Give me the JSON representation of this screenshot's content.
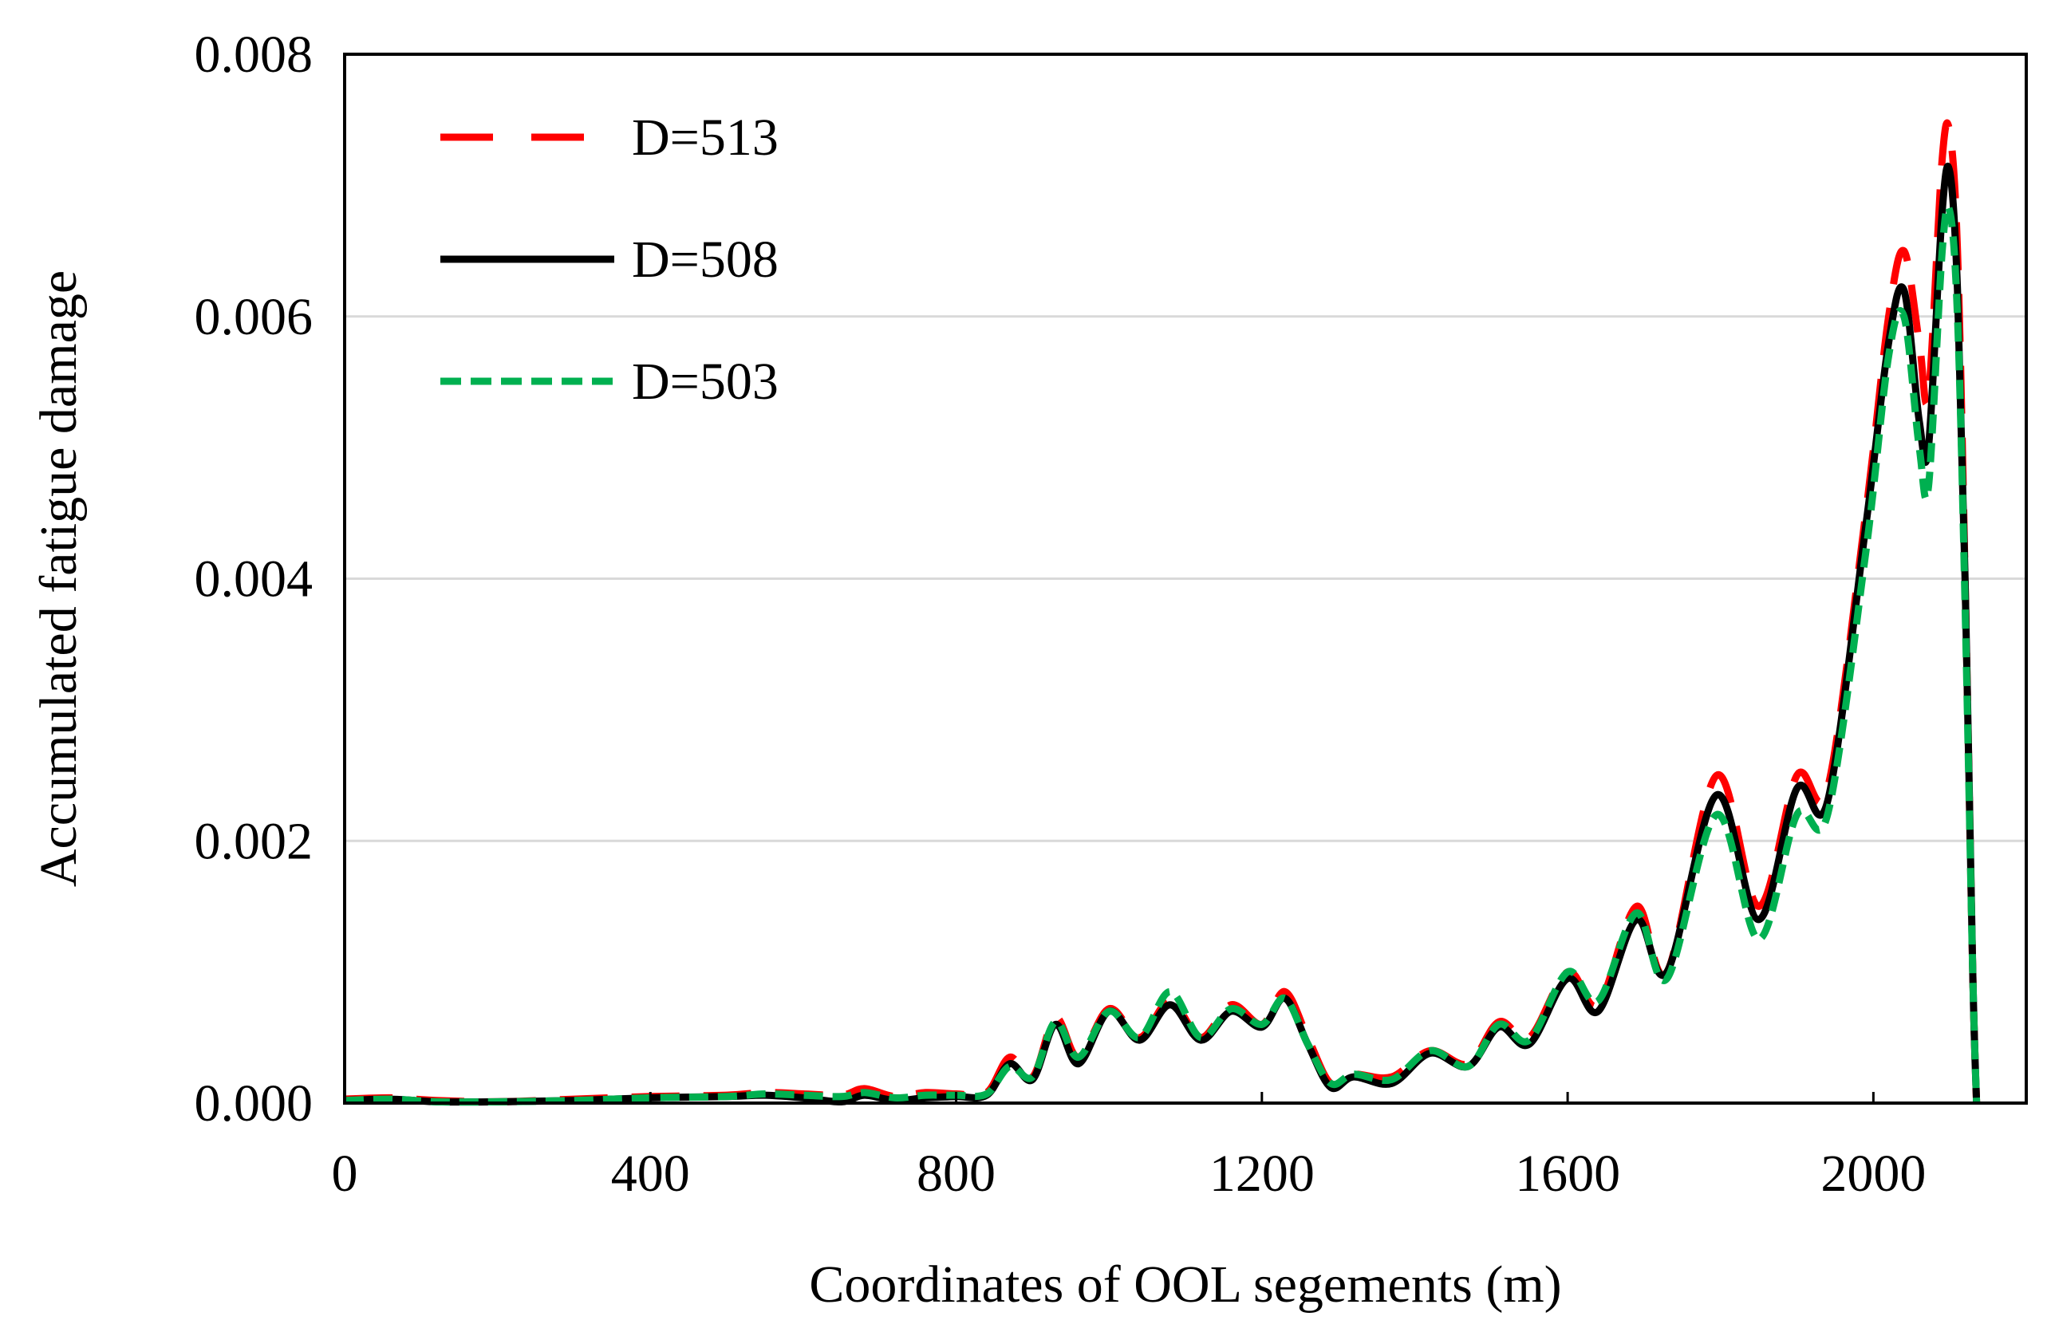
{
  "chart_data": {
    "type": "line",
    "title": "",
    "xlabel": "Coordinates of OOL segements (m)",
    "ylabel": "Accumulated fatigue damage",
    "xlim": [
      0,
      2200
    ],
    "ylim": [
      0,
      0.008
    ],
    "xticks": [
      0,
      400,
      800,
      1200,
      1600,
      2000
    ],
    "xtick_labels": [
      "0",
      "400",
      "800",
      "1200",
      "1600",
      "2000"
    ],
    "yticks": [
      0,
      0.002,
      0.004,
      0.006,
      0.008
    ],
    "ytick_labels": [
      "0.000",
      "0.002",
      "0.004",
      "0.006",
      "0.008"
    ],
    "grid": "horizontal",
    "legend_position": "top-left",
    "series": [
      {
        "name": "D=513",
        "color": "#ff0000",
        "style": "long-dash",
        "points": [
          [
            0,
            3e-05
          ],
          [
            60,
            4e-05
          ],
          [
            120,
            2e-05
          ],
          [
            200,
            1e-05
          ],
          [
            300,
            3e-05
          ],
          [
            400,
            5e-05
          ],
          [
            500,
            6e-05
          ],
          [
            550,
            8e-05
          ],
          [
            600,
            7e-05
          ],
          [
            650,
            6e-05
          ],
          [
            680,
            0.00011
          ],
          [
            720,
            5e-05
          ],
          [
            760,
            8e-05
          ],
          [
            800,
            7e-05
          ],
          [
            840,
            8e-05
          ],
          [
            870,
            0.00035
          ],
          [
            900,
            0.0002
          ],
          [
            930,
            0.00065
          ],
          [
            960,
            0.00035
          ],
          [
            1000,
            0.00072
          ],
          [
            1040,
            0.0005
          ],
          [
            1080,
            0.00078
          ],
          [
            1120,
            0.0005
          ],
          [
            1160,
            0.00075
          ],
          [
            1200,
            0.0006
          ],
          [
            1230,
            0.00085
          ],
          [
            1260,
            0.0005
          ],
          [
            1290,
            0.00015
          ],
          [
            1320,
            0.00022
          ],
          [
            1370,
            0.0002
          ],
          [
            1420,
            0.0004
          ],
          [
            1470,
            0.0003
          ],
          [
            1510,
            0.00062
          ],
          [
            1550,
            0.0005
          ],
          [
            1600,
            0.001
          ],
          [
            1640,
            0.00075
          ],
          [
            1690,
            0.0015
          ],
          [
            1730,
            0.001
          ],
          [
            1795,
            0.0025
          ],
          [
            1850,
            0.0015
          ],
          [
            1900,
            0.0025
          ],
          [
            1940,
            0.0024
          ],
          [
            1990,
            0.0045
          ],
          [
            2020,
            0.006
          ],
          [
            2040,
            0.0065
          ],
          [
            2060,
            0.0058
          ],
          [
            2072,
            0.0054
          ],
          [
            2090,
            0.0072
          ],
          [
            2100,
            0.0074
          ],
          [
            2110,
            0.0065
          ],
          [
            2120,
            0.004
          ],
          [
            2130,
            0.001
          ],
          [
            2135,
            0.0
          ]
        ]
      },
      {
        "name": "D=508",
        "color": "#000000",
        "style": "solid",
        "points": [
          [
            0,
            2e-05
          ],
          [
            60,
            3e-05
          ],
          [
            120,
            1e-05
          ],
          [
            200,
            1e-05
          ],
          [
            300,
            2e-05
          ],
          [
            400,
            4e-05
          ],
          [
            500,
            5e-05
          ],
          [
            550,
            6e-05
          ],
          [
            600,
            4e-05
          ],
          [
            650,
            1e-05
          ],
          [
            680,
            6e-05
          ],
          [
            720,
            2e-05
          ],
          [
            760,
            4e-05
          ],
          [
            800,
            5e-05
          ],
          [
            840,
            6e-05
          ],
          [
            870,
            0.0003
          ],
          [
            900,
            0.00018
          ],
          [
            930,
            0.0006
          ],
          [
            960,
            0.0003
          ],
          [
            1000,
            0.0007
          ],
          [
            1040,
            0.00048
          ],
          [
            1080,
            0.00075
          ],
          [
            1120,
            0.00048
          ],
          [
            1160,
            0.0007
          ],
          [
            1200,
            0.00058
          ],
          [
            1230,
            0.0008
          ],
          [
            1260,
            0.00045
          ],
          [
            1290,
            0.00012
          ],
          [
            1320,
            0.0002
          ],
          [
            1370,
            0.00015
          ],
          [
            1420,
            0.00038
          ],
          [
            1470,
            0.00028
          ],
          [
            1510,
            0.00058
          ],
          [
            1550,
            0.00045
          ],
          [
            1600,
            0.00095
          ],
          [
            1640,
            0.0007
          ],
          [
            1690,
            0.0014
          ],
          [
            1730,
            0.001
          ],
          [
            1795,
            0.00235
          ],
          [
            1850,
            0.0014
          ],
          [
            1900,
            0.0024
          ],
          [
            1940,
            0.0023
          ],
          [
            1990,
            0.0044
          ],
          [
            2020,
            0.0058
          ],
          [
            2040,
            0.0062
          ],
          [
            2060,
            0.0052
          ],
          [
            2072,
            0.005
          ],
          [
            2090,
            0.0068
          ],
          [
            2100,
            0.0071
          ],
          [
            2110,
            0.0062
          ],
          [
            2120,
            0.004
          ],
          [
            2130,
            0.001
          ],
          [
            2135,
            0.0
          ]
        ]
      },
      {
        "name": "D=503",
        "color": "#00b050",
        "style": "short-dash",
        "points": [
          [
            0,
            2e-05
          ],
          [
            60,
            3e-05
          ],
          [
            120,
            1e-05
          ],
          [
            200,
            1e-05
          ],
          [
            300,
            2e-05
          ],
          [
            400,
            4e-05
          ],
          [
            500,
            5e-05
          ],
          [
            550,
            7e-05
          ],
          [
            600,
            6e-05
          ],
          [
            650,
            5e-05
          ],
          [
            680,
            8e-05
          ],
          [
            720,
            4e-05
          ],
          [
            760,
            6e-05
          ],
          [
            800,
            6e-05
          ],
          [
            840,
            7e-05
          ],
          [
            870,
            0.00028
          ],
          [
            900,
            0.0002
          ],
          [
            930,
            0.00062
          ],
          [
            960,
            0.00035
          ],
          [
            1000,
            0.0007
          ],
          [
            1040,
            0.0005
          ],
          [
            1080,
            0.00085
          ],
          [
            1120,
            0.0005
          ],
          [
            1160,
            0.00072
          ],
          [
            1200,
            0.0006
          ],
          [
            1230,
            0.0008
          ],
          [
            1260,
            0.00045
          ],
          [
            1290,
            0.00015
          ],
          [
            1320,
            0.00022
          ],
          [
            1370,
            0.00018
          ],
          [
            1420,
            0.0004
          ],
          [
            1470,
            0.00028
          ],
          [
            1510,
            0.0006
          ],
          [
            1550,
            0.00048
          ],
          [
            1600,
            0.001
          ],
          [
            1640,
            0.00078
          ],
          [
            1690,
            0.00145
          ],
          [
            1730,
            0.00095
          ],
          [
            1795,
            0.0022
          ],
          [
            1850,
            0.00125
          ],
          [
            1900,
            0.0022
          ],
          [
            1940,
            0.0022
          ],
          [
            1990,
            0.0042
          ],
          [
            2020,
            0.0057
          ],
          [
            2040,
            0.006
          ],
          [
            2060,
            0.005
          ],
          [
            2072,
            0.0047
          ],
          [
            2090,
            0.0065
          ],
          [
            2100,
            0.0068
          ],
          [
            2110,
            0.006
          ],
          [
            2120,
            0.0038
          ],
          [
            2130,
            0.001
          ],
          [
            2135,
            0.0
          ]
        ]
      }
    ]
  }
}
